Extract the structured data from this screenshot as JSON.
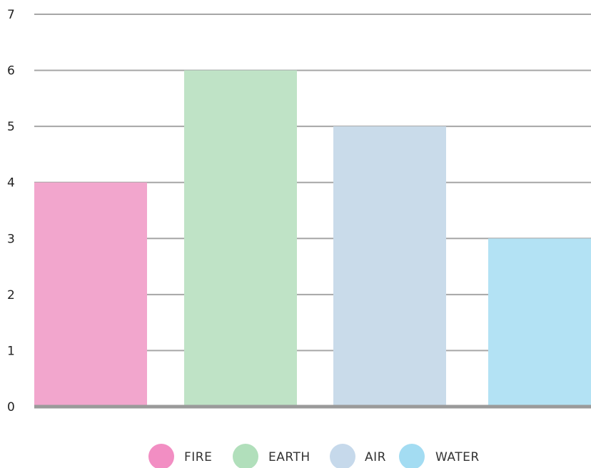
{
  "chart_data": {
    "type": "bar",
    "categories": [
      "FIRE",
      "EARTH",
      "AIR",
      "WATER"
    ],
    "values": [
      4,
      6,
      5,
      3
    ],
    "colors": [
      "#f2a6cd",
      "#bfe3c6",
      "#c9dbea",
      "#b3e2f4"
    ],
    "legend_colors": [
      "#f28ec3",
      "#b1dfbb",
      "#c6d9eb",
      "#a3dcf2"
    ],
    "ylim": [
      0,
      7
    ],
    "yticks": [
      "0",
      "1",
      "2",
      "3",
      "4",
      "5",
      "6",
      "7"
    ],
    "grid": true,
    "legend": {
      "position": "bottom",
      "labels": [
        "FIRE",
        "EARTH",
        "AIR",
        "WATER"
      ]
    }
  }
}
